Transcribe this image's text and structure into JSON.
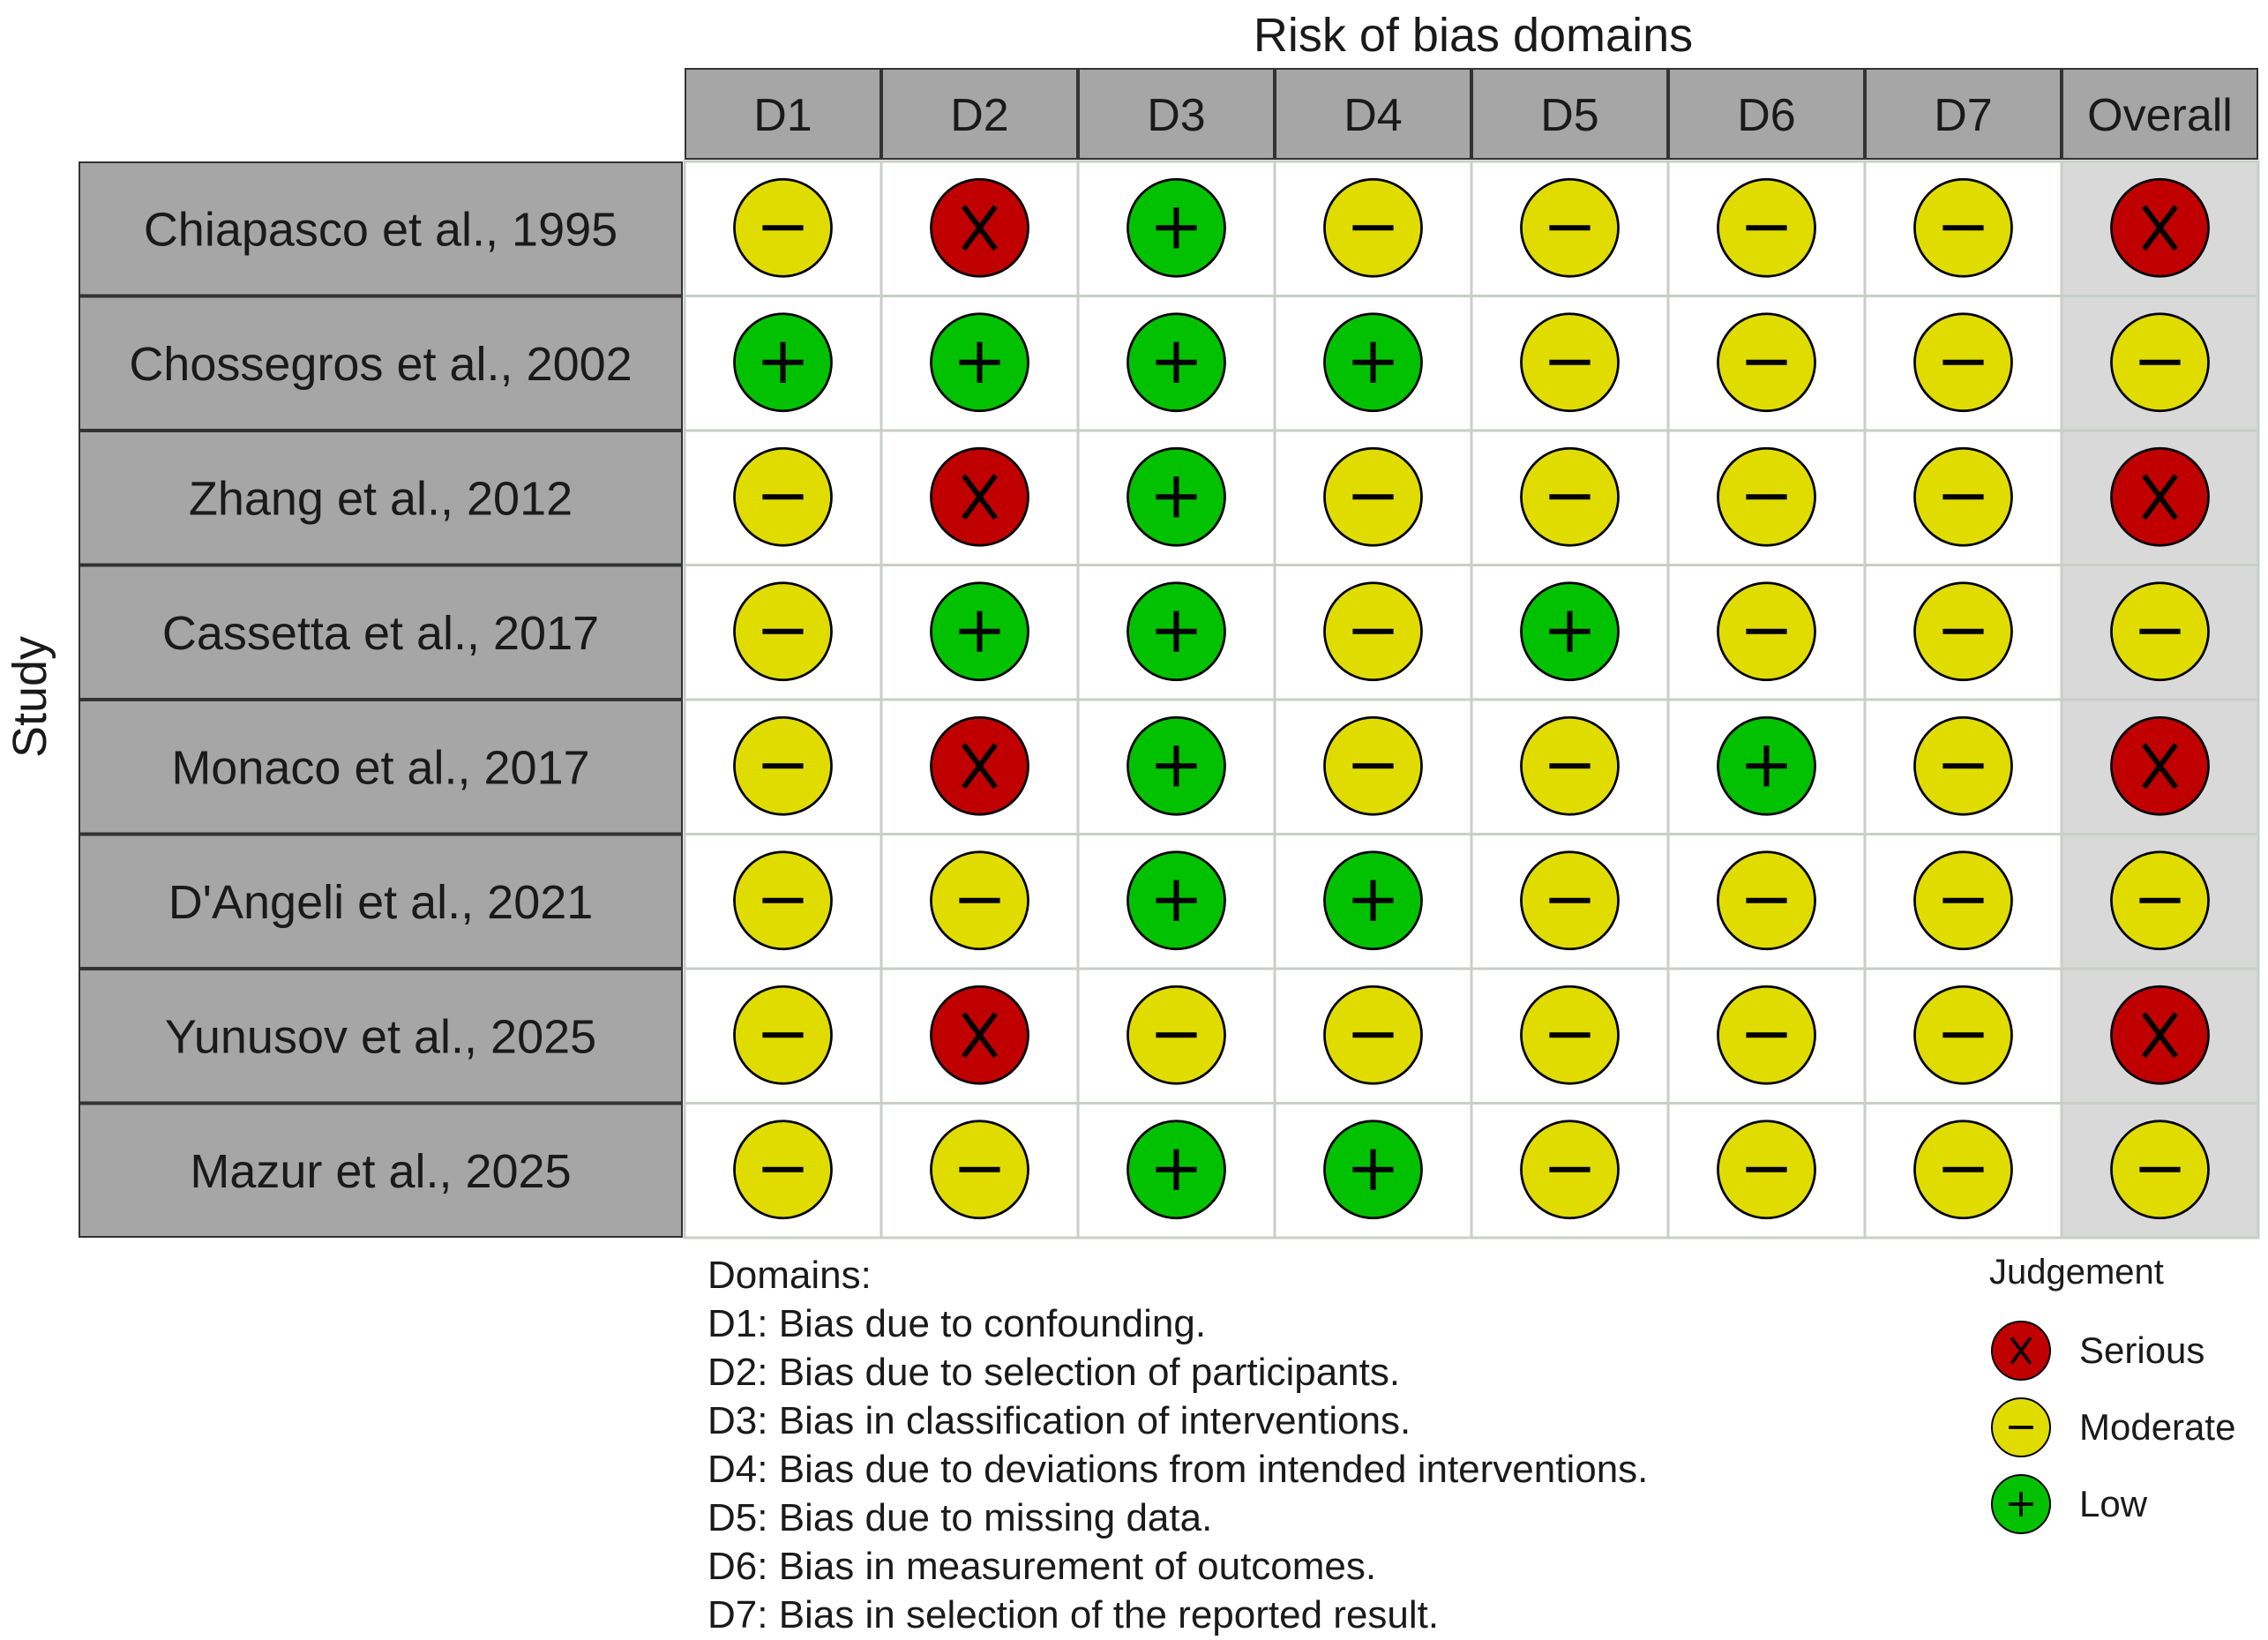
{
  "chart_data": {
    "type": "table",
    "title": "Risk of bias domains",
    "ylabel": "Study",
    "columns": [
      "D1",
      "D2",
      "D3",
      "D4",
      "D5",
      "D6",
      "D7",
      "Overall"
    ],
    "studies": [
      "Chiapasco et al., 1995",
      "Chossegros et al., 2002",
      "Zhang et al., 2012",
      "Cassetta et al., 2017",
      "Monaco et al., 2017",
      "D'Angeli et al., 2021",
      "Yunusov et al., 2025",
      "Mazur et al., 2025"
    ],
    "judgements": [
      [
        "Moderate",
        "Serious",
        "Low",
        "Moderate",
        "Moderate",
        "Moderate",
        "Moderate",
        "Serious"
      ],
      [
        "Low",
        "Low",
        "Low",
        "Low",
        "Moderate",
        "Moderate",
        "Moderate",
        "Moderate"
      ],
      [
        "Moderate",
        "Serious",
        "Low",
        "Moderate",
        "Moderate",
        "Moderate",
        "Moderate",
        "Serious"
      ],
      [
        "Moderate",
        "Low",
        "Low",
        "Moderate",
        "Low",
        "Moderate",
        "Moderate",
        "Moderate"
      ],
      [
        "Moderate",
        "Serious",
        "Low",
        "Moderate",
        "Moderate",
        "Low",
        "Moderate",
        "Serious"
      ],
      [
        "Moderate",
        "Moderate",
        "Low",
        "Low",
        "Moderate",
        "Moderate",
        "Moderate",
        "Moderate"
      ],
      [
        "Moderate",
        "Serious",
        "Moderate",
        "Moderate",
        "Moderate",
        "Moderate",
        "Moderate",
        "Serious"
      ],
      [
        "Moderate",
        "Moderate",
        "Low",
        "Low",
        "Moderate",
        "Moderate",
        "Moderate",
        "Moderate"
      ]
    ],
    "domains_heading": "Domains:",
    "domains": [
      "D1: Bias due to confounding.",
      "D2: Bias due to selection of participants.",
      "D3: Bias in classification of interventions.",
      "D4: Bias due to deviations from intended interventions.",
      "D5: Bias due to missing data.",
      "D6: Bias in measurement of outcomes.",
      "D7: Bias in selection of the reported result."
    ],
    "legend": {
      "title": "Judgement",
      "items": [
        {
          "label": "Serious",
          "color": "#c00000",
          "symbol": "X"
        },
        {
          "label": "Moderate",
          "color": "#e1dc00",
          "symbol": "−"
        },
        {
          "label": "Low",
          "color": "#02c100",
          "symbol": "+"
        }
      ]
    },
    "colors": {
      "header_fill": "#a6a6a6",
      "study_fill": "#a6a6a6",
      "overall_fill": "#d9d9d9",
      "cell_fill": "#ffffff",
      "grid": "#c8cec8"
    }
  }
}
